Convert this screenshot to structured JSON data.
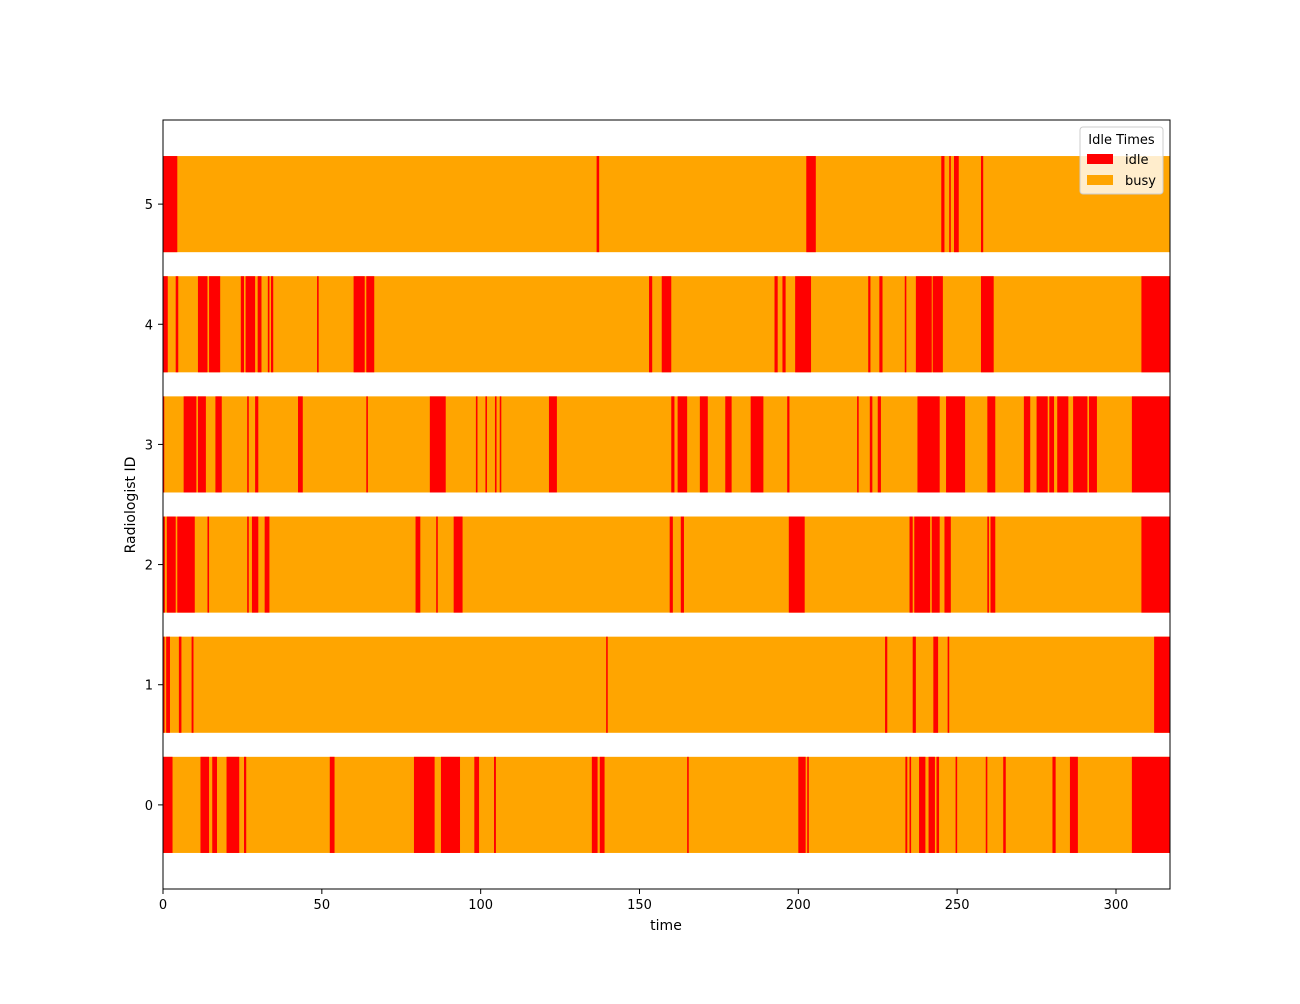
{
  "chart_data": {
    "type": "timeline",
    "title": "",
    "xlabel": "time",
    "ylabel": "Radiologist ID",
    "xlim": [
      0,
      317
    ],
    "ylim": [
      -0.7,
      5.7
    ],
    "x_ticks": [
      0,
      50,
      100,
      150,
      200,
      250,
      300
    ],
    "y_ticks": [
      0,
      1,
      2,
      3,
      4,
      5
    ],
    "grid": false,
    "bar_height": 0.8,
    "legend": {
      "title": "Idle Times",
      "placement": "top-right",
      "entries": [
        {
          "label": "idle",
          "color": "#ff0000"
        },
        {
          "label": "busy",
          "color": "#ffa500"
        }
      ]
    },
    "colors": {
      "idle": "#ff0000",
      "busy": "#ffa500"
    },
    "rows": [
      {
        "id": 0,
        "end": 317,
        "idle": [
          [
            0,
            3
          ],
          [
            11.8,
            14.5
          ],
          [
            15.5,
            17
          ],
          [
            20,
            24
          ],
          [
            25.5,
            26.2
          ],
          [
            52.5,
            54
          ],
          [
            79,
            85.5
          ],
          [
            87.5,
            93.5
          ],
          [
            98,
            99.5
          ],
          [
            104.2,
            104.8
          ],
          [
            135,
            136.8
          ],
          [
            137.5,
            139
          ],
          [
            165,
            165.5
          ],
          [
            200,
            202.3
          ],
          [
            202.8,
            203.3
          ],
          [
            233.7,
            234.3
          ],
          [
            235,
            235.5
          ],
          [
            238,
            240
          ],
          [
            241,
            243
          ],
          [
            243.5,
            244.3
          ],
          [
            249.5,
            250
          ],
          [
            259,
            259.5
          ],
          [
            264.5,
            265.3
          ],
          [
            280,
            281
          ],
          [
            285.5,
            288
          ],
          [
            305,
            317
          ]
        ]
      },
      {
        "id": 1,
        "end": 317,
        "idle": [
          [
            0,
            0.5
          ],
          [
            1,
            2.2
          ],
          [
            5,
            5.8
          ],
          [
            9,
            9.6
          ],
          [
            139.5,
            140
          ],
          [
            227.3,
            228
          ],
          [
            236,
            237
          ],
          [
            242.5,
            244
          ],
          [
            247,
            247.5
          ],
          [
            312,
            317
          ]
        ]
      },
      {
        "id": 2,
        "end": 317,
        "idle": [
          [
            0,
            0.6
          ],
          [
            1.2,
            4
          ],
          [
            4.5,
            10
          ],
          [
            14,
            14.5
          ],
          [
            26.5,
            27
          ],
          [
            28,
            30
          ],
          [
            32,
            33.5
          ],
          [
            79.5,
            81
          ],
          [
            86,
            86.5
          ],
          [
            91.5,
            94.3
          ],
          [
            159.5,
            160.5
          ],
          [
            163,
            164
          ],
          [
            197,
            202
          ],
          [
            235,
            236
          ],
          [
            236.5,
            241.5
          ],
          [
            242,
            244.5
          ],
          [
            246,
            248
          ],
          [
            259.5,
            260
          ],
          [
            260.5,
            262
          ],
          [
            308,
            317
          ]
        ]
      },
      {
        "id": 3,
        "end": 317,
        "idle": [
          [
            0,
            0.4
          ],
          [
            6.5,
            10.5
          ],
          [
            11,
            13.5
          ],
          [
            16.5,
            18.5
          ],
          [
            26.5,
            27
          ],
          [
            29,
            30
          ],
          [
            42.5,
            44
          ],
          [
            64,
            64.5
          ],
          [
            84,
            89
          ],
          [
            98.5,
            99
          ],
          [
            101.5,
            102
          ],
          [
            104.5,
            105
          ],
          [
            106,
            106.5
          ],
          [
            121.5,
            124
          ],
          [
            160,
            161
          ],
          [
            162,
            165
          ],
          [
            169,
            171.5
          ],
          [
            177,
            179
          ],
          [
            185,
            189
          ],
          [
            196.5,
            197.2
          ],
          [
            218.5,
            219
          ],
          [
            222.5,
            223.3
          ],
          [
            225,
            226
          ],
          [
            237.5,
            244.5
          ],
          [
            246.5,
            252.5
          ],
          [
            259.5,
            262
          ],
          [
            271,
            273
          ],
          [
            275,
            278.5
          ],
          [
            279,
            280.5
          ],
          [
            281.5,
            285
          ],
          [
            286.5,
            291
          ],
          [
            291.5,
            294
          ],
          [
            305,
            317
          ]
        ]
      },
      {
        "id": 4,
        "end": 317,
        "idle": [
          [
            0,
            1.5
          ],
          [
            4,
            4.8
          ],
          [
            11,
            14
          ],
          [
            14.5,
            18
          ],
          [
            24.5,
            25.5
          ],
          [
            26,
            29
          ],
          [
            29.8,
            31
          ],
          [
            33,
            33.5
          ],
          [
            34,
            34.7
          ],
          [
            48.5,
            49
          ],
          [
            60,
            63.5
          ],
          [
            64,
            66.5
          ],
          [
            153,
            154
          ],
          [
            157,
            160
          ],
          [
            192.5,
            193.5
          ],
          [
            195,
            196
          ],
          [
            199,
            204
          ],
          [
            222,
            222.7
          ],
          [
            225.5,
            226.5
          ],
          [
            233.5,
            234
          ],
          [
            237,
            242
          ],
          [
            242.3,
            245.5
          ],
          [
            257.5,
            261.5
          ],
          [
            308,
            317
          ]
        ]
      },
      {
        "id": 5,
        "end": 317,
        "idle": [
          [
            0,
            4.5
          ],
          [
            136.5,
            137.3
          ],
          [
            202.5,
            205.5
          ],
          [
            245,
            246
          ],
          [
            247.5,
            248
          ],
          [
            249,
            250.5
          ],
          [
            257.5,
            258.2
          ]
        ]
      }
    ]
  }
}
